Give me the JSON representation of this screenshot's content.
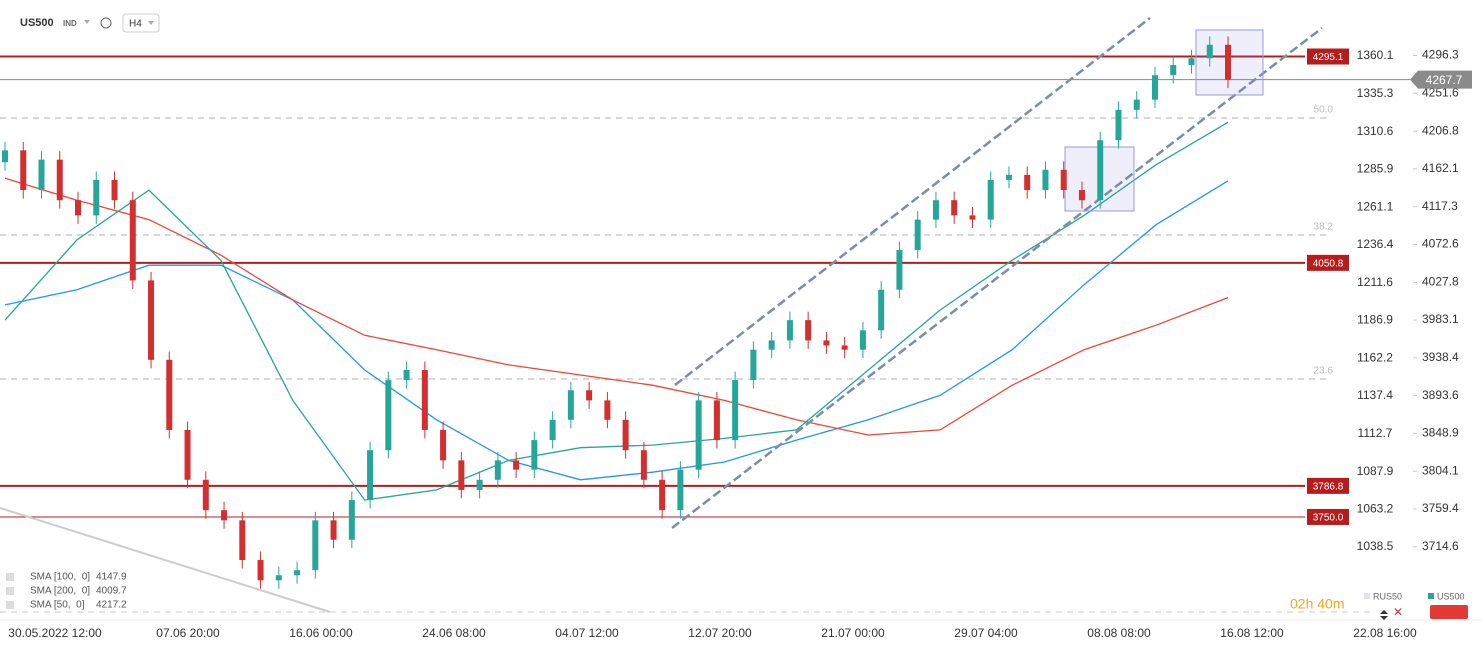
{
  "header": {
    "symbol": "US500",
    "market": "IND",
    "timeframe": "H4"
  },
  "footer": {
    "countdown": "02h 40m",
    "compare_symbol": "RUS50",
    "main_symbol": "US500"
  },
  "chart_data": {
    "type": "candlestick",
    "ylim": [
      3628,
      4362
    ],
    "yticks": [
      4296.3,
      4251.6,
      4206.8,
      4162.1,
      4117.3,
      4072.6,
      4027.8,
      3983.1,
      3938.4,
      3893.6,
      3848.9,
      3804.1,
      3759.4,
      3714.6
    ],
    "y2lim": [
      990.7,
      1396.8
    ],
    "y2ticks": [
      1360.1,
      1335.3,
      1310.6,
      1285.9,
      1261.1,
      1236.4,
      1211.6,
      1186.9,
      1162.2,
      1137.4,
      1112.7,
      1087.9,
      1063.2,
      1038.5
    ],
    "x_labels": [
      "30.05.2022 12:00",
      "07.06 20:00",
      "16.06 00:00",
      "24.06 08:00",
      "04.07 12:00",
      "12.07 20:00",
      "21.07 00:00",
      "29.07 04:00",
      "08.08 08:00",
      "16.08 12:00",
      "22.08 16:00"
    ],
    "up_color": "#26a69a",
    "down_color": "#d32f2f",
    "candles": {
      "open": [
        4170,
        4184,
        4137,
        4173,
        4125,
        4107,
        4149,
        4125,
        4030,
        3936,
        3853,
        3794,
        3758,
        3746,
        3699,
        3675,
        3681,
        3687,
        3746,
        3723,
        3770,
        3829,
        3912,
        3924,
        3853,
        3817,
        3782,
        3794,
        3817,
        3806,
        3841,
        3865,
        3900,
        3888,
        3865,
        3829,
        3794,
        3758,
        3806,
        3888,
        3841,
        3912,
        3948,
        3959,
        3983,
        3959,
        3953,
        3948,
        3971,
        4019,
        4066,
        4102,
        4125,
        4107,
        4102,
        4149,
        4155,
        4137,
        4161,
        4137,
        4125,
        4196,
        4232,
        4244,
        4273,
        4285,
        4293,
        4309
      ],
      "high": [
        4194,
        4194,
        4183,
        4183,
        4135,
        4159,
        4159,
        4135,
        4040,
        3946,
        3863,
        3804,
        3768,
        3756,
        3709,
        3691,
        3697,
        3756,
        3756,
        3780,
        3839,
        3922,
        3934,
        3934,
        3863,
        3827,
        3804,
        3827,
        3827,
        3851,
        3875,
        3910,
        3910,
        3898,
        3875,
        3839,
        3804,
        3816,
        3898,
        3898,
        3922,
        3958,
        3969,
        3993,
        3993,
        3969,
        3963,
        3981,
        4029,
        4076,
        4112,
        4135,
        4135,
        4117,
        4159,
        4165,
        4165,
        4171,
        4171,
        4147,
        4206,
        4242,
        4254,
        4283,
        4295,
        4303,
        4319,
        4319
      ],
      "low": [
        4160,
        4127,
        4127,
        4115,
        4097,
        4097,
        4115,
        4020,
        3926,
        3843,
        3784,
        3748,
        3736,
        3689,
        3665,
        3665,
        3671,
        3677,
        3713,
        3713,
        3760,
        3819,
        3902,
        3843,
        3807,
        3772,
        3772,
        3784,
        3796,
        3796,
        3831,
        3855,
        3878,
        3855,
        3819,
        3784,
        3748,
        3748,
        3796,
        3831,
        3831,
        3902,
        3938,
        3949,
        3949,
        3943,
        3938,
        3938,
        3961,
        4009,
        4056,
        4092,
        4097,
        4092,
        4092,
        4139,
        4127,
        4127,
        4127,
        4115,
        4115,
        4186,
        4222,
        4234,
        4263,
        4275,
        4283,
        4257.7
      ],
      "close": [
        4184,
        4137,
        4173,
        4125,
        4107,
        4149,
        4125,
        4030,
        3936,
        3853,
        3794,
        3758,
        3746,
        3699,
        3675,
        3681,
        3687,
        3746,
        3723,
        3770,
        3829,
        3912,
        3924,
        3853,
        3817,
        3782,
        3794,
        3817,
        3806,
        3841,
        3865,
        3900,
        3888,
        3865,
        3829,
        3794,
        3758,
        3806,
        3888,
        3841,
        3912,
        3948,
        3959,
        3983,
        3959,
        3953,
        3948,
        3971,
        4019,
        4066,
        4102,
        4125,
        4107,
        4102,
        4149,
        4155,
        4137,
        4161,
        4137,
        4125,
        4196,
        4232,
        4244,
        4273,
        4285,
        4293,
        4309,
        4267.7
      ]
    },
    "series": [
      {
        "name": "SMA [100,  0]",
        "color": "#2196f3",
        "values": [
          4001,
          4019,
          4048,
          4048,
          4007,
          3924,
          3865,
          3817,
          3794,
          3803,
          3815,
          3841,
          3865,
          3894,
          3948,
          4025,
          4096,
          4147.9
        ]
      },
      {
        "name": "SMA [200,  0]",
        "color": "#f44336",
        "values": [
          4151,
          4125,
          4102,
          4060,
          4007,
          3965,
          3948,
          3930,
          3918,
          3906,
          3888,
          3865,
          3847,
          3853,
          3906,
          3948,
          3977,
          4009.7
        ]
      },
      {
        "name": "SMA [50,  0]",
        "color": "#26a69a",
        "values": [
          3983,
          4078,
          4137,
          4054,
          3888,
          3770,
          3782,
          3817,
          3832,
          3835,
          3843,
          3853,
          3924,
          3995,
          4054,
          4107,
          4167,
          4217.2
        ]
      }
    ],
    "levels": [
      4295.1,
      4050.8,
      3786.8,
      {
        "value": 3750,
        "label": "3750.0"
      }
    ],
    "level_color": "#b71c1c",
    "fib_levels": [
      {
        "value": 4222.3,
        "label": "50.0"
      },
      {
        "value": 4083.8,
        "label": "38.2"
      },
      {
        "value": 3913.3,
        "label": "23.6"
      }
    ],
    "last_price": 4267.7
  }
}
